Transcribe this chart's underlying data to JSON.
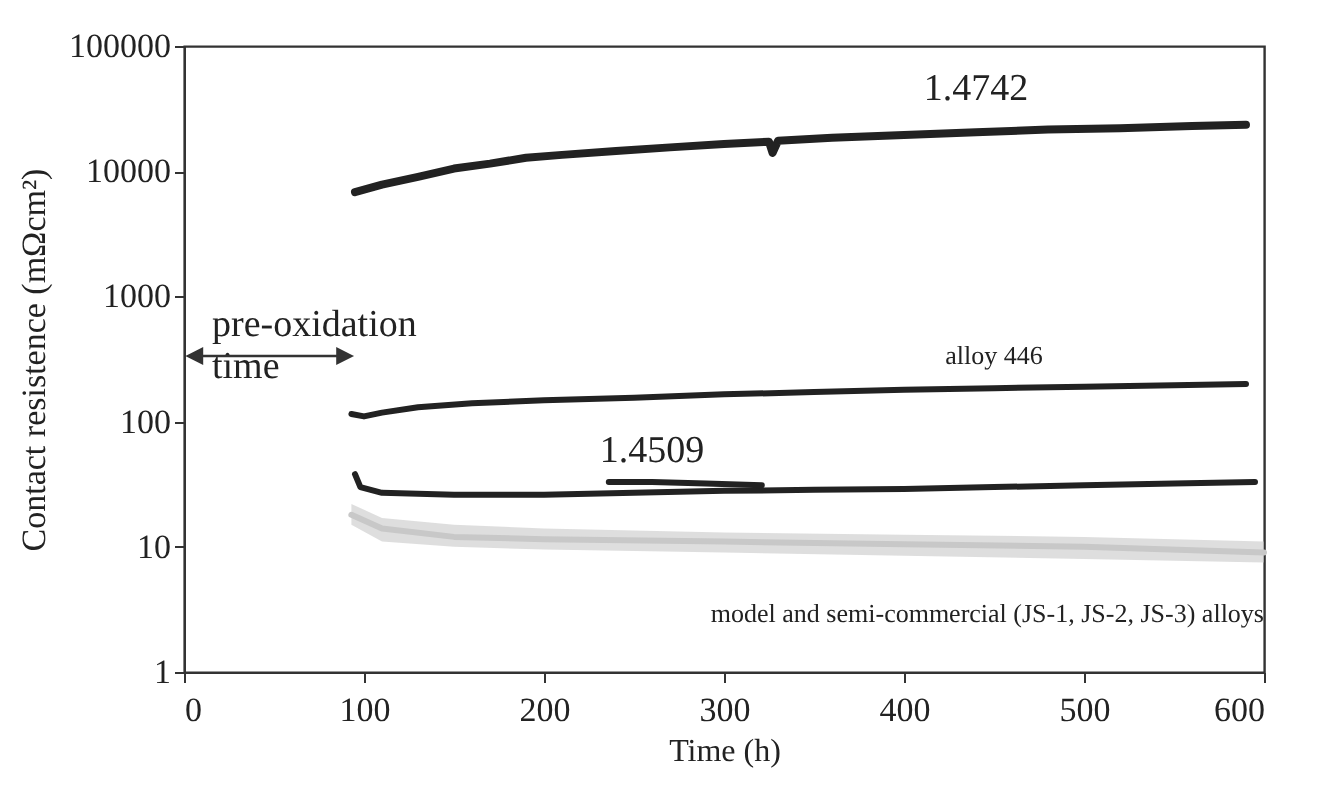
{
  "chart_data": {
    "type": "line",
    "xlabel": "Time (h)",
    "ylabel": "Contact resistence (mΩcm²)",
    "log": "y",
    "xlim": [
      0,
      600
    ],
    "xticks": [
      0,
      100,
      200,
      300,
      400,
      500,
      600
    ],
    "ylim": [
      1,
      100000
    ],
    "yticks": [
      1,
      10,
      100,
      1000,
      10000,
      100000
    ],
    "annotations": [
      "pre-oxidation time"
    ],
    "grid": false,
    "series": [
      {
        "name": "1.4742",
        "color": "#222222",
        "x": [
          95,
          110,
          130,
          150,
          170,
          190,
          210,
          240,
          270,
          300,
          325,
          327,
          330,
          360,
          400,
          440,
          480,
          520,
          560,
          590
        ],
        "values": [
          6800,
          7800,
          9000,
          10500,
          11500,
          12800,
          13500,
          14500,
          15500,
          16500,
          17200,
          14000,
          17500,
          18500,
          19500,
          20500,
          21500,
          22000,
          23000,
          23500
        ]
      },
      {
        "name": "alloy 446",
        "color": "#222222",
        "x": [
          93,
          100,
          110,
          130,
          160,
          200,
          250,
          300,
          350,
          400,
          450,
          500,
          550,
          590
        ],
        "values": [
          115,
          110,
          118,
          130,
          140,
          148,
          155,
          165,
          172,
          180,
          185,
          190,
          195,
          200
        ]
      },
      {
        "color": "#222222",
        "x": [
          95,
          98,
          110,
          150,
          200,
          250,
          300,
          350,
          400,
          450,
          500,
          550,
          595
        ],
        "values": [
          38,
          30,
          27,
          26,
          26,
          27,
          28,
          28.5,
          29,
          30,
          31,
          32,
          33
        ]
      },
      {
        "name": "1.4509",
        "color": "#222222",
        "x": [
          236,
          260,
          290,
          321
        ],
        "values": [
          33,
          33,
          32,
          31
        ]
      },
      {
        "name": "model and semi-commercial (JS-1, JS-2, JS-3) alloys",
        "color": "#c8c8c8",
        "x": [
          93,
          110,
          150,
          200,
          300,
          400,
          500,
          600
        ],
        "values": [
          18,
          14,
          12,
          11.5,
          11,
          10.5,
          10,
          9
        ],
        "lower": [
          15,
          11,
          10,
          9.5,
          9,
          8.5,
          8,
          7.5
        ],
        "upper": [
          22,
          17,
          15,
          14,
          13,
          12.5,
          12,
          11
        ]
      }
    ]
  }
}
